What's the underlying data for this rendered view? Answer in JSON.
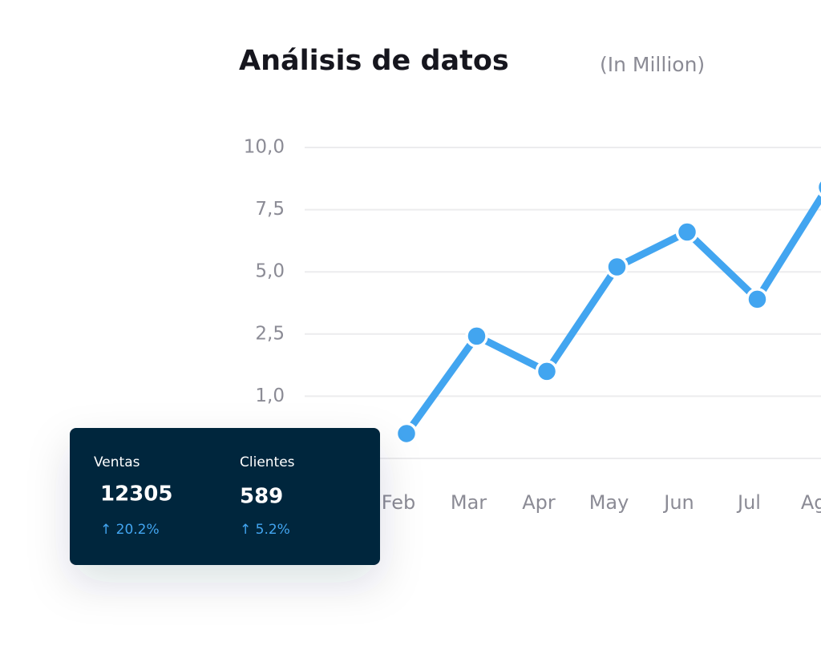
{
  "chart_data": {
    "type": "line",
    "title": "Análisis de datos",
    "subtitle": "(In Million)",
    "categories": [
      "Feb",
      "Mar",
      "Apr",
      "May",
      "Jun",
      "Jul",
      "Ago"
    ],
    "series": [
      {
        "color": "#42a5f0",
        "values": [
          0.4,
          2.45,
          1.6,
          5.2,
          6.6,
          3.9,
          8.4
        ]
      }
    ],
    "ylim": [
      0,
      10
    ],
    "yticks": [
      {
        "value": 1,
        "label": "1,0"
      },
      {
        "value": 2.5,
        "label": "2,5"
      },
      {
        "value": 5,
        "label": "5,0"
      },
      {
        "value": 7.5,
        "label": "7,5"
      },
      {
        "value": 10,
        "label": "10,0"
      }
    ],
    "grid": true
  },
  "tooltip": {
    "items": [
      {
        "label": "Ventas",
        "value": 12305,
        "change": "↑ 20.2%"
      },
      {
        "label": "Clientes",
        "value": 589,
        "change": "↑ 5.2%"
      }
    ]
  }
}
